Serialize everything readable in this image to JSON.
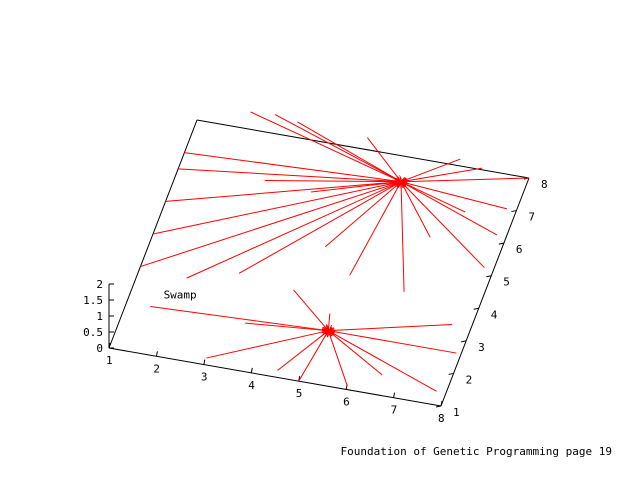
{
  "footer": "Foundation of Genetic Programming page 19",
  "colors": {
    "vector": "#ff0000",
    "axis": "#000000",
    "background": "#ffffff"
  },
  "chart_data": {
    "type": "vector-field-3d",
    "title": "",
    "xlabel": "",
    "ylabel": "",
    "zlabel": "",
    "x_ticks": [
      "1",
      "2",
      "3",
      "4",
      "5",
      "6",
      "7",
      "8"
    ],
    "y_ticks": [
      "1",
      "2",
      "3",
      "4",
      "5",
      "6",
      "7",
      "8"
    ],
    "z_ticks": [
      "0",
      "0.5",
      "1",
      "1.5",
      "2"
    ],
    "xlim": [
      1,
      8
    ],
    "ylim": [
      1,
      8
    ],
    "zlim": [
      0,
      2
    ],
    "annotations": [
      {
        "text": "Swamp",
        "x": 1.7,
        "y": 2.7
      }
    ],
    "attractors": [
      {
        "name": "",
        "x": 5.5,
        "y": 7.25
      },
      {
        "name": "",
        "x": 5.2,
        "y": 2.6
      }
    ],
    "vectors": [
      {
        "x0": 2.0,
        "y0": 8.5,
        "x1": 5.5,
        "y1": 7.25
      },
      {
        "x0": 2.5,
        "y0": 8.55,
        "x1": 5.5,
        "y1": 7.25
      },
      {
        "x0": 3.0,
        "y0": 8.45,
        "x1": 5.5,
        "y1": 7.25
      },
      {
        "x0": 4.5,
        "y0": 8.35,
        "x1": 5.5,
        "y1": 7.25
      },
      {
        "x0": 8.0,
        "y0": 8.0,
        "x1": 5.5,
        "y1": 7.25
      },
      {
        "x0": 7.0,
        "y0": 8.05,
        "x1": 5.5,
        "y1": 7.25
      },
      {
        "x0": 6.5,
        "y0": 8.2,
        "x1": 5.5,
        "y1": 7.25
      },
      {
        "x0": 1.0,
        "y0": 7.0,
        "x1": 5.5,
        "y1": 7.25
      },
      {
        "x0": 1.0,
        "y0": 6.5,
        "x1": 5.5,
        "y1": 7.25
      },
      {
        "x0": 1.0,
        "y0": 5.5,
        "x1": 5.5,
        "y1": 7.25
      },
      {
        "x0": 1.0,
        "y0": 4.5,
        "x1": 5.5,
        "y1": 7.25
      },
      {
        "x0": 1.0,
        "y0": 3.5,
        "x1": 5.5,
        "y1": 7.25
      },
      {
        "x0": 2.0,
        "y0": 3.4,
        "x1": 5.5,
        "y1": 7.25
      },
      {
        "x0": 3.0,
        "y0": 3.8,
        "x1": 5.5,
        "y1": 7.25
      },
      {
        "x0": 4.5,
        "y0": 5.0,
        "x1": 5.5,
        "y1": 7.25
      },
      {
        "x0": 5.2,
        "y0": 4.3,
        "x1": 5.5,
        "y1": 7.25
      },
      {
        "x0": 6.4,
        "y0": 4.1,
        "x1": 5.5,
        "y1": 7.25
      },
      {
        "x0": 7.8,
        "y0": 7.0,
        "x1": 5.5,
        "y1": 7.25
      },
      {
        "x0": 7.8,
        "y0": 6.2,
        "x1": 5.5,
        "y1": 7.25
      },
      {
        "x0": 7.8,
        "y0": 5.2,
        "x1": 5.5,
        "y1": 7.25
      },
      {
        "x0": 2.8,
        "y0": 6.6,
        "x1": 5.5,
        "y1": 7.25
      },
      {
        "x0": 3.8,
        "y0": 6.5,
        "x1": 5.5,
        "y1": 7.25
      },
      {
        "x0": 6.5,
        "y0": 5.8,
        "x1": 5.5,
        "y1": 7.25
      },
      {
        "x0": 7.0,
        "y0": 6.7,
        "x1": 5.5,
        "y1": 7.25
      },
      {
        "x0": 1.5,
        "y0": 2.4,
        "x1": 5.2,
        "y1": 2.6
      },
      {
        "x0": 3.0,
        "y0": 1.2,
        "x1": 5.2,
        "y1": 2.6
      },
      {
        "x0": 4.5,
        "y0": 1.2,
        "x1": 5.2,
        "y1": 2.6
      },
      {
        "x0": 5.0,
        "y0": 1.0,
        "x1": 5.2,
        "y1": 2.6
      },
      {
        "x0": 6.0,
        "y0": 1.1,
        "x1": 5.2,
        "y1": 2.6
      },
      {
        "x0": 7.8,
        "y0": 1.4,
        "x1": 5.2,
        "y1": 2.6
      },
      {
        "x0": 7.9,
        "y0": 2.6,
        "x1": 5.2,
        "y1": 2.6
      },
      {
        "x0": 7.6,
        "y0": 3.4,
        "x1": 5.2,
        "y1": 2.6
      },
      {
        "x0": 4.2,
        "y0": 3.6,
        "x1": 5.2,
        "y1": 2.6
      },
      {
        "x0": 5.1,
        "y0": 3.1,
        "x1": 5.2,
        "y1": 2.6
      },
      {
        "x0": 6.6,
        "y0": 1.6,
        "x1": 5.2,
        "y1": 2.6
      },
      {
        "x0": 3.5,
        "y0": 2.4,
        "x1": 5.2,
        "y1": 2.6
      }
    ]
  }
}
